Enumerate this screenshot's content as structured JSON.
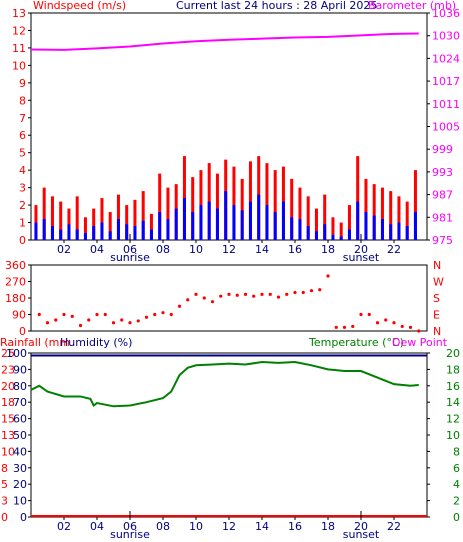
{
  "header": {
    "left_title": "Windspeed (m/s)",
    "center_title": "Current last 24 hours : 28 April 2025",
    "right_title": "Barometer (mb)"
  },
  "markers": {
    "sunrise": "sunrise",
    "sunset": "sunset"
  },
  "colors": {
    "wind_gust": "#ff0000",
    "wind_avg": "#0000ff",
    "barometer": "#ff00ff",
    "direction": "#ff0000",
    "humidity": "#000080",
    "temperature": "#008000",
    "dewpoint": "#ff00ff",
    "rainfall": "#ff0000",
    "axis": "#000000",
    "left_ticks": "#ff0000",
    "right_ticks_top": "#ff00ff",
    "right_ticks_bottom": "#008000"
  },
  "chart_data": [
    {
      "type": "line",
      "x_unit": "hour",
      "xlim": [
        0,
        24
      ],
      "x_tick_labels": [
        "02",
        "04",
        "06",
        "08",
        "10",
        "12",
        "14",
        "16",
        "18",
        "20",
        "22"
      ],
      "x_tick_hours": [
        2,
        4,
        6,
        8,
        10,
        12,
        14,
        16,
        18,
        20,
        22
      ],
      "sunrise_hour": 6.0,
      "sunset_hour": 20.0,
      "title": "Current last 24 hours : 28 April 2025",
      "ylabel": "Windspeed (m/s)",
      "ylim": [
        0,
        13
      ],
      "y_ticks": [
        "0",
        "1",
        "2",
        "3",
        "4",
        "5",
        "6",
        "7",
        "8",
        "9",
        "10",
        "11",
        "12",
        "13"
      ],
      "y2label": "Barometer (mb)",
      "y2lim": [
        975,
        1036
      ],
      "y2_ticks": [
        "975",
        "981",
        "987",
        "993",
        "999",
        "1005",
        "1011",
        "1017",
        "1024",
        "1030",
        "1036"
      ],
      "series": [
        {
          "name": "Windspeed",
          "role": "gust",
          "x": [
            0.3,
            0.8,
            1.3,
            1.8,
            2.3,
            2.8,
            3.3,
            3.8,
            4.3,
            4.8,
            5.3,
            5.8,
            6.3,
            6.8,
            7.3,
            7.8,
            8.3,
            8.8,
            9.3,
            9.8,
            10.3,
            10.8,
            11.3,
            11.8,
            12.3,
            12.8,
            13.3,
            13.8,
            14.3,
            14.8,
            15.3,
            15.8,
            16.3,
            16.8,
            17.3,
            17.8,
            18.3,
            18.8,
            19.3,
            19.8,
            20.3,
            20.8,
            21.3,
            21.8,
            22.3,
            22.8,
            23.3
          ],
          "values": [
            2.0,
            3.0,
            2.5,
            2.2,
            1.8,
            2.5,
            1.3,
            1.8,
            2.4,
            1.6,
            2.6,
            2.0,
            2.3,
            2.8,
            1.5,
            3.8,
            3.0,
            3.2,
            4.8,
            3.6,
            4.0,
            4.4,
            3.8,
            4.6,
            4.2,
            3.5,
            4.5,
            4.8,
            4.4,
            4.0,
            4.2,
            3.5,
            3.0,
            2.5,
            1.8,
            2.6,
            1.3,
            1.0,
            2.0,
            4.8,
            3.5,
            3.2,
            3.0,
            2.8,
            2.5,
            2.2,
            4.0
          ]
        },
        {
          "name": "Windspeed",
          "role": "average",
          "x": [
            0.3,
            0.8,
            1.3,
            1.8,
            2.3,
            2.8,
            3.3,
            3.8,
            4.3,
            4.8,
            5.3,
            5.8,
            6.3,
            6.8,
            7.3,
            7.8,
            8.3,
            8.8,
            9.3,
            9.8,
            10.3,
            10.8,
            11.3,
            11.8,
            12.3,
            12.8,
            13.3,
            13.8,
            14.3,
            14.8,
            15.3,
            15.8,
            16.3,
            16.8,
            17.3,
            17.8,
            18.3,
            18.8,
            19.3,
            19.8,
            20.3,
            20.8,
            21.3,
            21.8,
            22.3,
            22.8,
            23.3
          ],
          "values": [
            1.0,
            1.2,
            0.8,
            0.6,
            0.9,
            0.6,
            0.4,
            0.8,
            1.0,
            0.5,
            1.2,
            0.9,
            0.8,
            1.1,
            0.6,
            1.6,
            1.2,
            1.8,
            2.4,
            1.6,
            2.0,
            2.2,
            1.8,
            2.8,
            2.0,
            1.7,
            2.2,
            2.6,
            2.0,
            1.6,
            2.2,
            1.3,
            1.2,
            0.8,
            0.5,
            0.9,
            0.3,
            0.2,
            0.6,
            2.2,
            1.6,
            1.4,
            1.2,
            0.9,
            1.0,
            0.8,
            1.6
          ]
        },
        {
          "name": "Barometer",
          "axis": "y2",
          "x": [
            0,
            2,
            4,
            6,
            8,
            10,
            12,
            14,
            16,
            18,
            20,
            22,
            23.5
          ],
          "values": [
            1026.2,
            1026.1,
            1026.5,
            1027.0,
            1027.8,
            1028.4,
            1028.8,
            1029.1,
            1029.4,
            1029.6,
            1030.0,
            1030.4,
            1030.5
          ]
        }
      ]
    },
    {
      "type": "scatter",
      "x_unit": "hour",
      "xlim": [
        0,
        24
      ],
      "ylim": [
        0,
        360
      ],
      "y_ticks": [
        "0",
        "90",
        "180",
        "270",
        "360"
      ],
      "y2_ticks": [
        "N",
        "E",
        "S",
        "W",
        "N"
      ],
      "series": [
        {
          "name": "Wind direction",
          "x": [
            0.5,
            1.0,
            1.5,
            2.0,
            2.5,
            3.0,
            3.5,
            4.0,
            4.5,
            5.0,
            5.5,
            6.0,
            6.5,
            7.0,
            7.5,
            8.0,
            8.5,
            9.0,
            9.5,
            10.0,
            10.5,
            11.0,
            11.5,
            12.0,
            12.5,
            13.0,
            13.5,
            14.0,
            14.5,
            15.0,
            15.5,
            16.0,
            16.5,
            17.0,
            17.5,
            18.0,
            18.5,
            19.0,
            19.5,
            20.0,
            20.5,
            21.0,
            21.5,
            22.0,
            22.5,
            23.0,
            23.5
          ],
          "values": [
            90,
            45,
            60,
            90,
            80,
            30,
            60,
            90,
            90,
            45,
            60,
            45,
            55,
            75,
            90,
            100,
            90,
            135,
            170,
            200,
            180,
            160,
            190,
            200,
            195,
            200,
            190,
            200,
            200,
            185,
            200,
            210,
            210,
            220,
            225,
            300,
            20,
            20,
            25,
            90,
            90,
            45,
            60,
            45,
            25,
            20,
            0
          ]
        }
      ]
    },
    {
      "type": "line",
      "x_unit": "hour",
      "xlim": [
        0,
        24
      ],
      "ylabel": "Rainfall (mm",
      "ylim": [
        0,
        100
      ],
      "y_ticks": [
        "0",
        "3",
        "5",
        "8",
        "10",
        "13",
        "15",
        "18",
        "20",
        "23",
        "25"
      ],
      "y_ticks_humidity": [
        "0",
        "10",
        "20",
        "30",
        "40",
        "50",
        "60",
        "70",
        "80",
        "90",
        "100"
      ],
      "y2label": "Temperature (°C)",
      "y2lim": [
        0,
        20
      ],
      "y2_ticks": [
        "0",
        "2",
        "4",
        "6",
        "8",
        "10",
        "12",
        "14",
        "16",
        "18",
        "20"
      ],
      "series": [
        {
          "name": "Humidity (%)",
          "x": [
            0,
            24
          ],
          "values": [
            98.5,
            98.5
          ]
        },
        {
          "name": "Temperature (°C)",
          "axis": "y2",
          "x": [
            0.0,
            0.5,
            1.0,
            2.0,
            3.0,
            3.6,
            3.8,
            4.0,
            5.0,
            6.0,
            7.0,
            8.0,
            8.5,
            9.0,
            9.5,
            10.0,
            11.0,
            12.0,
            13.0,
            14.0,
            15.0,
            16.0,
            17.0,
            18.0,
            19.0,
            20.0,
            21.0,
            22.0,
            23.0,
            23.5
          ],
          "values": [
            15.5,
            16.0,
            15.3,
            14.7,
            14.7,
            14.4,
            13.6,
            13.9,
            13.5,
            13.6,
            14.0,
            14.5,
            15.3,
            17.3,
            18.2,
            18.5,
            18.6,
            18.7,
            18.6,
            18.9,
            18.8,
            18.9,
            18.5,
            18.0,
            17.8,
            17.8,
            17.0,
            16.2,
            16.0,
            16.1
          ]
        },
        {
          "name": "Rainfall",
          "x": [
            0,
            24
          ],
          "values": [
            0,
            0
          ]
        }
      ],
      "legend": [
        "Rainfall (mm",
        "Humidity (%)",
        "Temperature (°C)",
        "Dew Point"
      ]
    }
  ]
}
